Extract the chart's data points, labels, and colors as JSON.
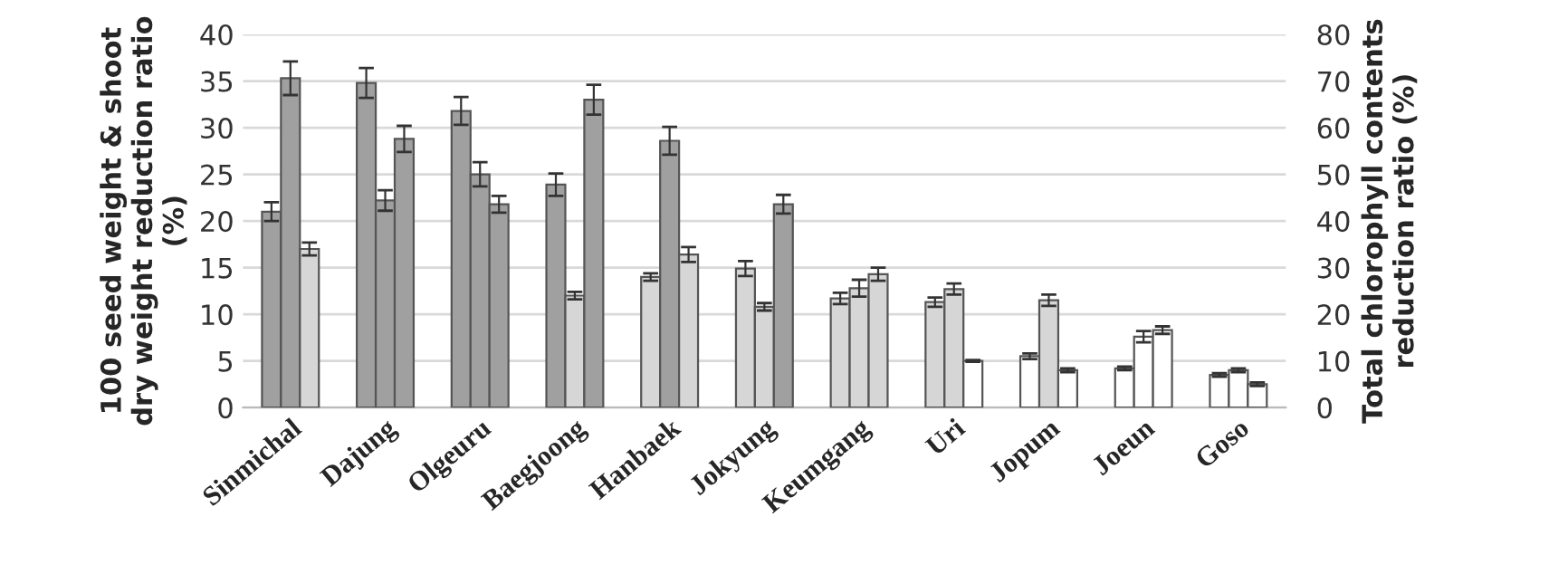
{
  "chart_data": {
    "type": "bar",
    "ylabel": "100 seed weight & shoot dry weight reduction ratio (%)",
    "y2label": "Total chlorophyll contents reduction ratio (%)",
    "categories": [
      "Sinmichal",
      "Dajung",
      "Olgeuru",
      "Baegjoong",
      "Hanbaek",
      "Jokyung",
      "Keumgang",
      "Uri",
      "Jopum",
      "Joeun",
      "Goso"
    ],
    "series": [
      {
        "values": [
          21.0,
          34.8,
          31.8,
          23.9,
          14.0,
          14.9,
          11.7,
          11.3,
          5.5,
          4.2,
          3.5
        ],
        "errors": [
          1.0,
          1.6,
          1.5,
          1.2,
          0.4,
          0.8,
          0.6,
          0.5,
          0.3,
          0.2,
          0.2
        ],
        "colors": [
          "#a0a0a0",
          "#a0a0a0",
          "#a0a0a0",
          "#a0a0a0",
          "#d6d6d6",
          "#d6d6d6",
          "#d6d6d6",
          "#d6d6d6",
          "#ffffff",
          "#ffffff",
          "#ffffff"
        ]
      },
      {
        "values": [
          35.3,
          22.2,
          25.0,
          12.0,
          28.6,
          10.8,
          12.8,
          12.7,
          11.5,
          7.6,
          4.0
        ],
        "errors": [
          1.8,
          1.1,
          1.3,
          0.4,
          1.5,
          0.4,
          0.9,
          0.6,
          0.6,
          0.6,
          0.2
        ],
        "colors": [
          "#a0a0a0",
          "#a0a0a0",
          "#a0a0a0",
          "#d6d6d6",
          "#a0a0a0",
          "#d6d6d6",
          "#d6d6d6",
          "#d6d6d6",
          "#d6d6d6",
          "#ffffff",
          "#ffffff"
        ]
      },
      {
        "values": [
          17.0,
          28.8,
          21.8,
          33.0,
          16.4,
          21.8,
          14.3,
          5.0,
          4.0,
          8.3,
          2.5
        ],
        "errors": [
          0.7,
          1.4,
          0.9,
          1.6,
          0.8,
          1.0,
          0.7,
          0.1,
          0.2,
          0.4,
          0.2
        ],
        "colors": [
          "#d6d6d6",
          "#a0a0a0",
          "#a0a0a0",
          "#a0a0a0",
          "#d6d6d6",
          "#a0a0a0",
          "#d6d6d6",
          "#ffffff",
          "#ffffff",
          "#ffffff",
          "#ffffff"
        ]
      }
    ],
    "ylim": [
      0,
      40
    ],
    "yticks": [
      0,
      5,
      10,
      15,
      20,
      25,
      30,
      35,
      40
    ],
    "y2lim": [
      0,
      80
    ],
    "y2ticks": [
      0,
      10,
      20,
      30,
      40,
      50,
      60,
      70,
      80
    ],
    "grid": "y"
  }
}
